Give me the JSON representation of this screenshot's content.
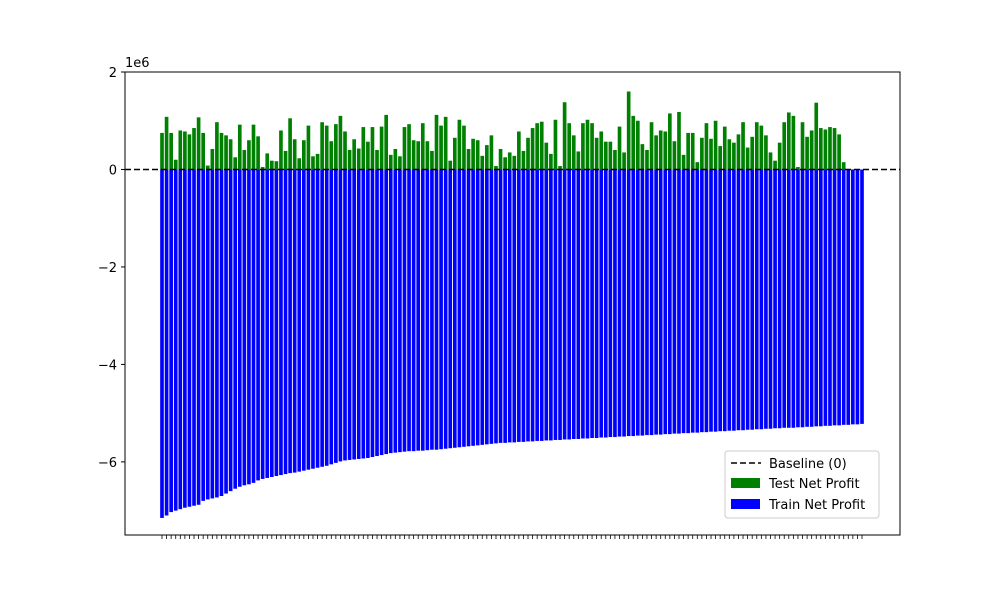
{
  "chart_data": {
    "type": "bar",
    "title": "",
    "xlabel": "",
    "ylabel": "",
    "y_offset_label": "1e6",
    "ylim": [
      -7.5,
      2.0
    ],
    "yticks": [
      2,
      0,
      -2,
      -4,
      -6
    ],
    "ytick_labels": [
      "2",
      "0",
      "−2",
      "−4",
      "−6"
    ],
    "grid": false,
    "legend_position": "lower-right",
    "baseline": {
      "name": "Baseline (0)",
      "value": 0,
      "color": "#000000",
      "style": "dashed"
    },
    "series": [
      {
        "name": "Train Net Profit",
        "color": "#0000ff",
        "values": [
          -7.15,
          -7.1,
          -7.03,
          -7.0,
          -6.97,
          -6.94,
          -6.92,
          -6.9,
          -6.88,
          -6.8,
          -6.77,
          -6.75,
          -6.73,
          -6.7,
          -6.65,
          -6.6,
          -6.55,
          -6.51,
          -6.48,
          -6.46,
          -6.43,
          -6.38,
          -6.35,
          -6.33,
          -6.31,
          -6.29,
          -6.27,
          -6.25,
          -6.23,
          -6.22,
          -6.2,
          -6.18,
          -6.16,
          -6.14,
          -6.12,
          -6.1,
          -6.08,
          -6.05,
          -6.02,
          -5.99,
          -5.97,
          -5.96,
          -5.95,
          -5.94,
          -5.93,
          -5.92,
          -5.9,
          -5.88,
          -5.86,
          -5.84,
          -5.82,
          -5.81,
          -5.8,
          -5.79,
          -5.78,
          -5.78,
          -5.77,
          -5.77,
          -5.76,
          -5.75,
          -5.75,
          -5.74,
          -5.73,
          -5.72,
          -5.71,
          -5.7,
          -5.69,
          -5.68,
          -5.67,
          -5.66,
          -5.65,
          -5.64,
          -5.63,
          -5.62,
          -5.61,
          -5.61,
          -5.6,
          -5.6,
          -5.59,
          -5.59,
          -5.58,
          -5.58,
          -5.57,
          -5.57,
          -5.56,
          -5.56,
          -5.55,
          -5.55,
          -5.54,
          -5.54,
          -5.53,
          -5.53,
          -5.52,
          -5.52,
          -5.51,
          -5.51,
          -5.5,
          -5.5,
          -5.49,
          -5.49,
          -5.48,
          -5.48,
          -5.47,
          -5.47,
          -5.46,
          -5.46,
          -5.45,
          -5.45,
          -5.44,
          -5.44,
          -5.43,
          -5.43,
          -5.42,
          -5.42,
          -5.41,
          -5.41,
          -5.4,
          -5.4,
          -5.39,
          -5.39,
          -5.38,
          -5.38,
          -5.37,
          -5.37,
          -5.36,
          -5.36,
          -5.35,
          -5.35,
          -5.34,
          -5.34,
          -5.33,
          -5.33,
          -5.32,
          -5.32,
          -5.31,
          -5.31,
          -5.3,
          -5.3,
          -5.3,
          -5.29,
          -5.29,
          -5.28,
          -5.28,
          -5.27,
          -5.27,
          -5.26,
          -5.26,
          -5.25,
          -5.25,
          -5.24,
          -5.24,
          -5.23,
          -5.23,
          -5.22
        ]
      },
      {
        "name": "Test Net Profit",
        "color": "#008000",
        "values": [
          0.75,
          1.08,
          0.75,
          0.2,
          0.8,
          0.78,
          0.72,
          0.85,
          1.07,
          0.75,
          0.08,
          0.42,
          0.97,
          0.75,
          0.7,
          0.62,
          0.25,
          0.92,
          0.4,
          0.6,
          0.92,
          0.68,
          0.05,
          0.33,
          0.18,
          0.17,
          0.8,
          0.38,
          1.05,
          0.62,
          0.23,
          0.6,
          0.9,
          0.27,
          0.32,
          0.97,
          0.9,
          0.58,
          0.93,
          1.1,
          0.78,
          0.4,
          0.62,
          0.43,
          0.87,
          0.57,
          0.87,
          0.4,
          0.88,
          1.12,
          0.3,
          0.42,
          0.27,
          0.87,
          0.93,
          0.6,
          0.58,
          0.95,
          0.58,
          0.38,
          1.12,
          0.9,
          1.08,
          0.18,
          0.65,
          1.02,
          0.9,
          0.42,
          0.63,
          0.6,
          0.28,
          0.5,
          0.7,
          0.07,
          0.42,
          0.25,
          0.35,
          0.28,
          0.78,
          0.38,
          0.65,
          0.85,
          0.95,
          0.98,
          0.55,
          0.32,
          1.02,
          0.07,
          1.38,
          0.95,
          0.7,
          0.37,
          0.95,
          1.02,
          0.95,
          0.65,
          0.78,
          0.57,
          0.57,
          0.4,
          0.88,
          0.35,
          1.6,
          1.1,
          1.0,
          0.52,
          0.4,
          0.97,
          0.7,
          0.8,
          0.78,
          1.15,
          0.58,
          1.18,
          0.3,
          0.75,
          0.75,
          0.15,
          0.65,
          0.95,
          0.63,
          1.0,
          0.48,
          0.88,
          0.62,
          0.55,
          0.72,
          0.97,
          0.45,
          0.67,
          0.97,
          0.9,
          0.7,
          0.35,
          0.18,
          0.55,
          0.97,
          1.17,
          1.1,
          0.05,
          0.97,
          0.67,
          0.8,
          1.37,
          0.85,
          0.82,
          0.87,
          0.85,
          0.72,
          0.15
        ]
      }
    ]
  }
}
